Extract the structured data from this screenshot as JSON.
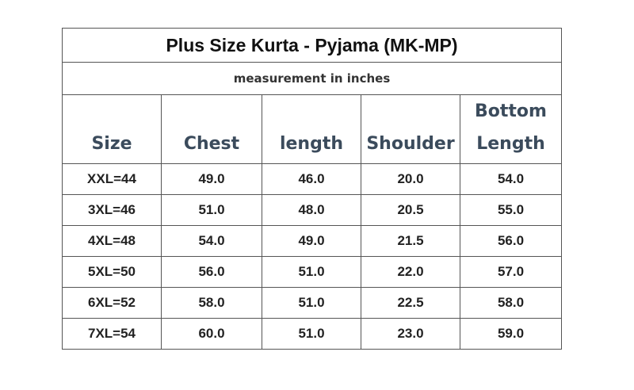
{
  "table": {
    "title": "Plus Size Kurta - Pyjama (MK-MP)",
    "subtitle": "measurement in inches",
    "header": [
      "Size",
      "Chest",
      "length",
      "Shoulder",
      "Bottom Length"
    ],
    "rows": [
      [
        "XXL=44",
        "49.0",
        "46.0",
        "20.0",
        "54.0"
      ],
      [
        "3XL=46",
        "51.0",
        "48.0",
        "20.5",
        "55.0"
      ],
      [
        "4XL=48",
        "54.0",
        "49.0",
        "21.5",
        "56.0"
      ],
      [
        "5XL=50",
        "56.0",
        "51.0",
        "22.0",
        "57.0"
      ],
      [
        "6XL=52",
        "58.0",
        "51.0",
        "22.5",
        "58.0"
      ],
      [
        "7XL=54",
        "60.0",
        "51.0",
        "23.0",
        "59.0"
      ]
    ]
  }
}
